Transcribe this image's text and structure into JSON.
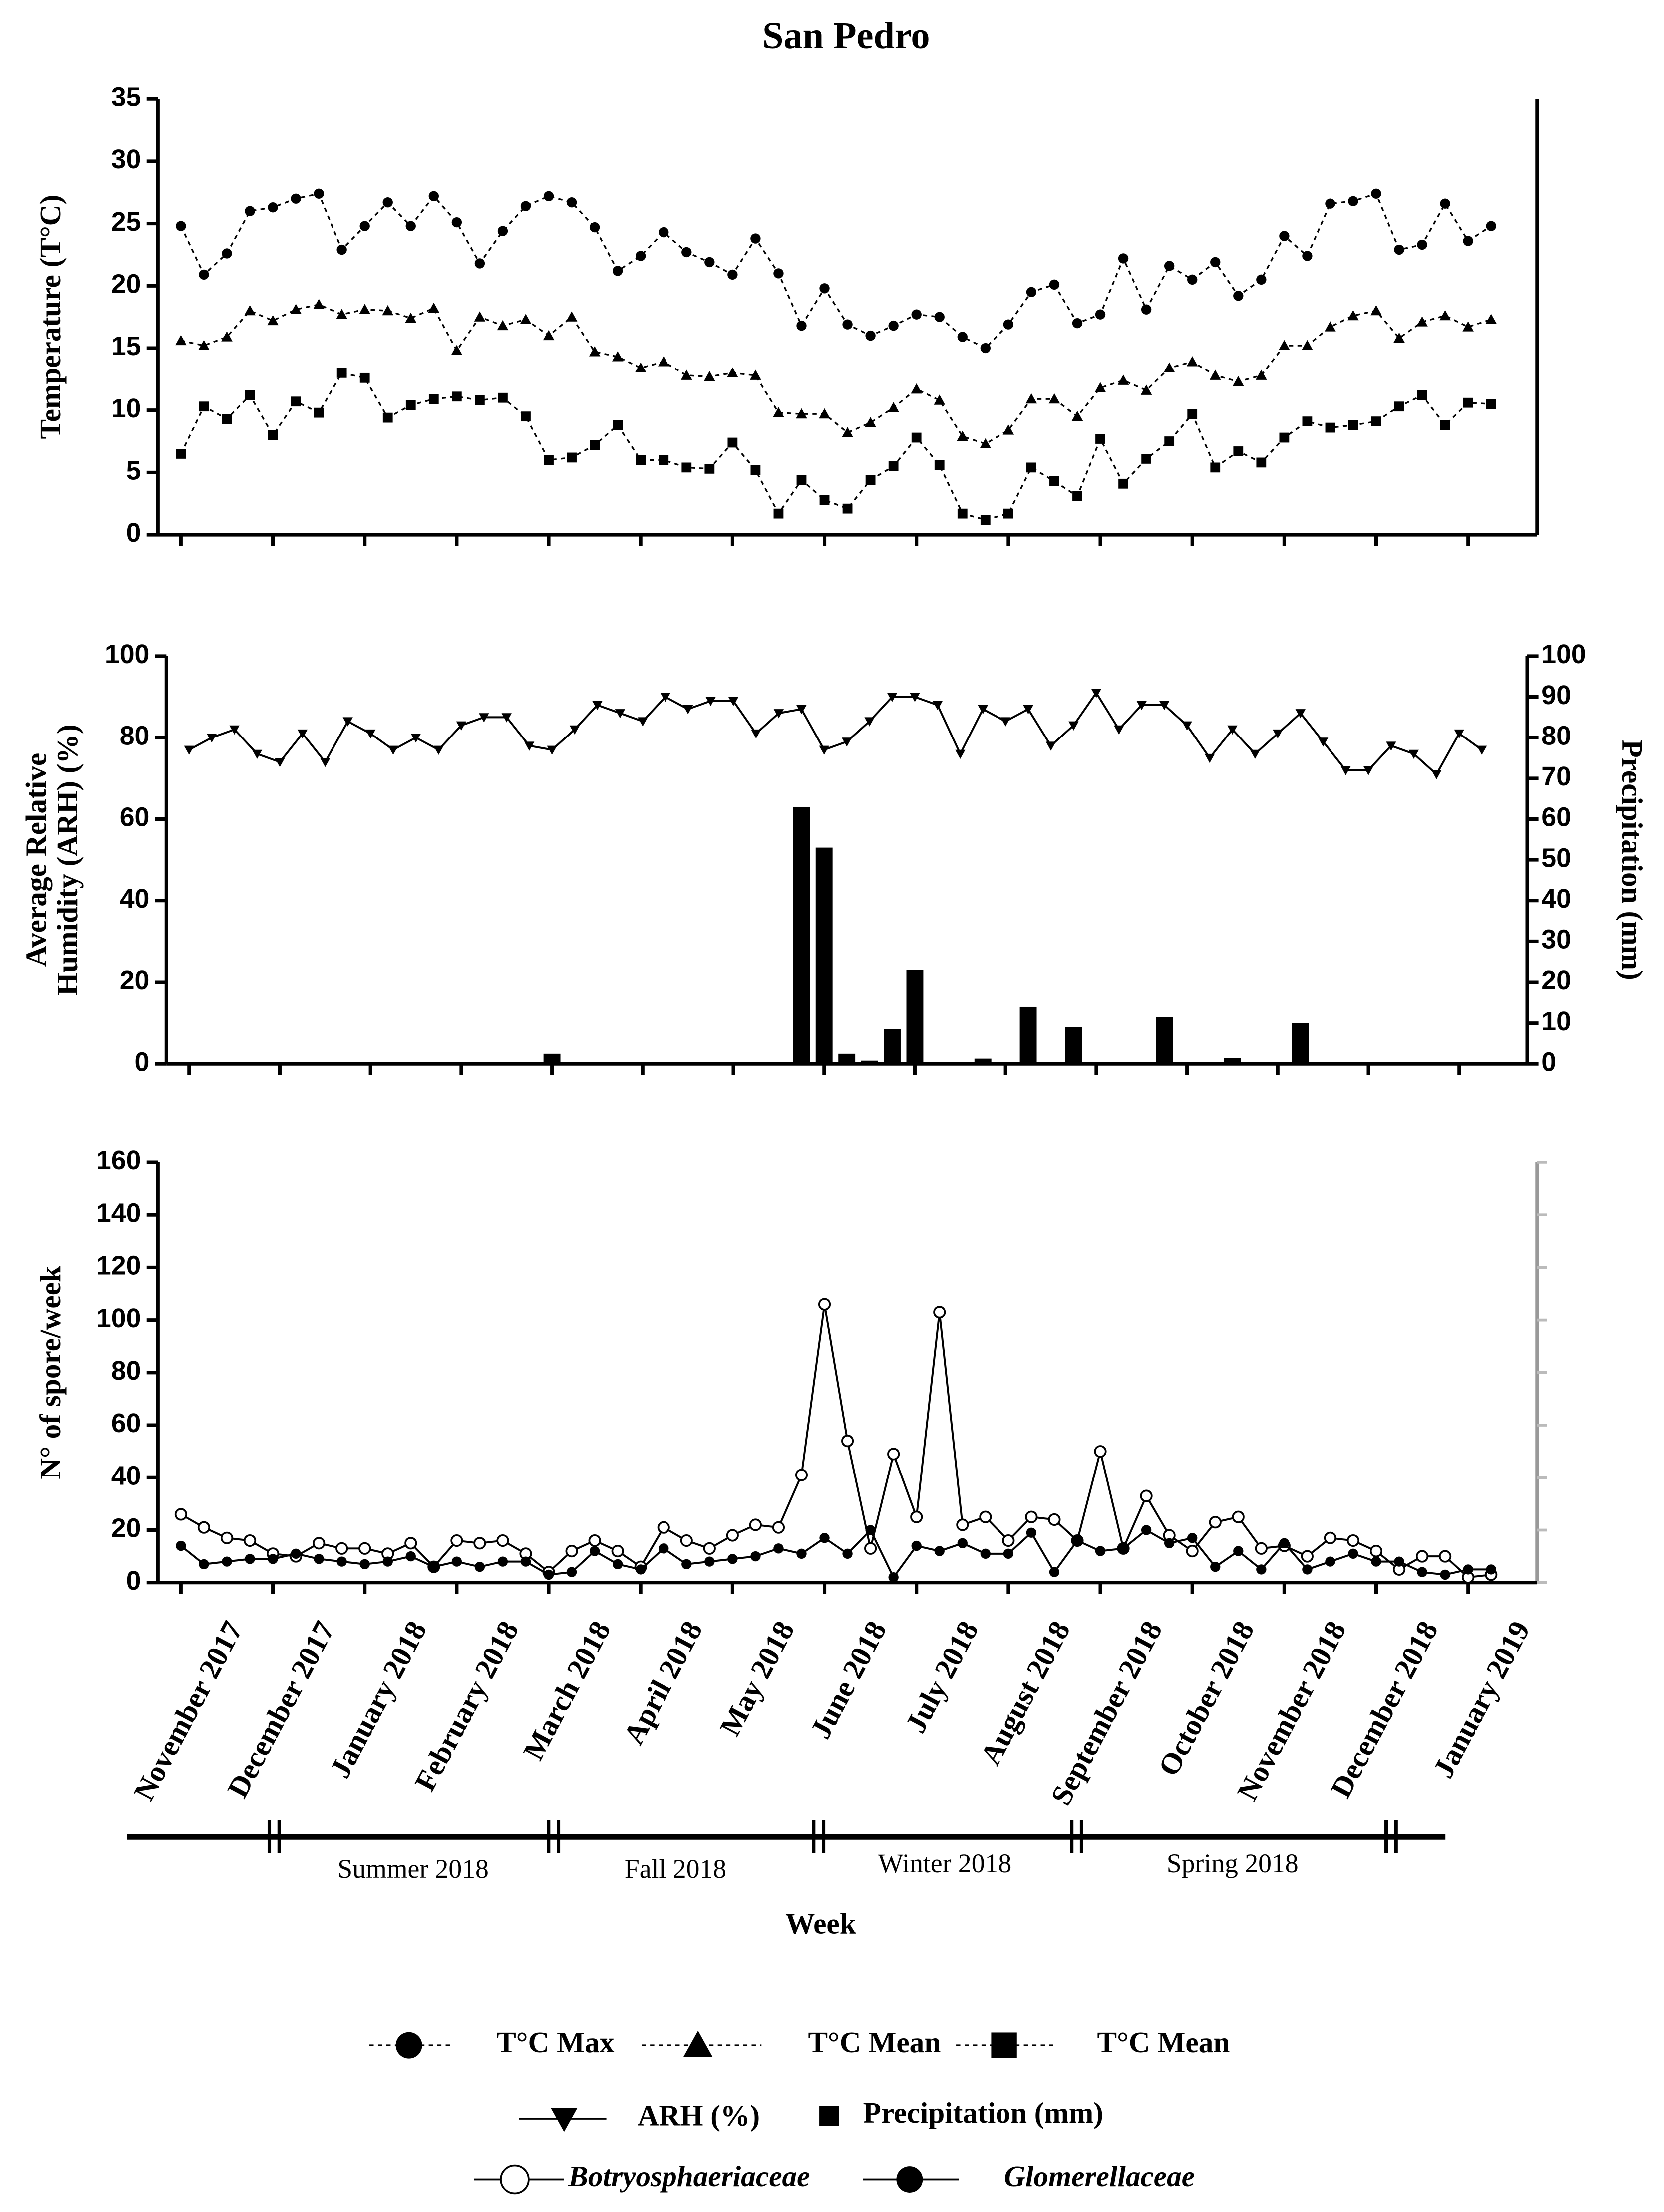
{
  "title": "San Pedro",
  "chart_data": [
    {
      "type": "line",
      "ylabel": [
        "Temperature (T°C)"
      ],
      "ylim": [
        0,
        35
      ],
      "yticks": [
        0,
        5,
        10,
        15,
        20,
        25,
        30,
        35
      ],
      "xlim": [
        -1,
        59
      ],
      "xticks": [
        0,
        4,
        8,
        12,
        16,
        20,
        24,
        28,
        32,
        36,
        40,
        44,
        48,
        52,
        56
      ],
      "series": [
        {
          "name": "T°C Max",
          "color": "#000000",
          "marker": "circle",
          "dashed": true,
          "values": [
            24.8,
            20.9,
            22.6,
            26,
            26.3,
            27,
            27.4,
            22.9,
            24.8,
            26.7,
            24.8,
            27.2,
            25.1,
            21.8,
            24.4,
            26.4,
            27.2,
            26.7,
            24.7,
            21.2,
            22.4,
            24.3,
            22.7,
            21.9,
            20.9,
            23.8,
            21,
            16.8,
            19.8,
            16.9,
            16,
            16.8,
            17.7,
            17.5,
            15.9,
            15,
            16.9,
            19.5,
            20.1,
            17,
            17.7,
            22.2,
            18.1,
            21.6,
            20.5,
            21.9,
            19.2,
            20.5,
            24,
            22.4,
            26.6,
            26.8,
            27.4,
            22.9,
            23.3,
            26.6,
            23.6,
            24.8
          ]
        },
        {
          "name": "T°C Mean",
          "color": "#000000",
          "marker": "triangle",
          "dashed": true,
          "values": [
            15.6,
            15.2,
            15.9,
            18,
            17.2,
            18.1,
            18.5,
            17.7,
            18.1,
            18,
            17.4,
            18.2,
            14.8,
            17.5,
            16.8,
            17.3,
            16,
            17.5,
            14.7,
            14.3,
            13.4,
            13.9,
            12.8,
            12.7,
            13,
            12.8,
            9.8,
            9.7,
            9.7,
            8.2,
            9,
            10.2,
            11.7,
            10.8,
            7.9,
            7.3,
            8.4,
            10.9,
            10.9,
            9.5,
            11.8,
            12.4,
            11.6,
            13.4,
            13.9,
            12.8,
            12.3,
            12.8,
            15.2,
            15.2,
            16.7,
            17.6,
            18,
            15.8,
            17.1,
            17.6,
            16.7,
            17.3
          ]
        },
        {
          "name": "T°C Mean",
          "color": "#000000",
          "marker": "square",
          "dashed": true,
          "values": [
            6.5,
            10.3,
            9.3,
            11.2,
            8,
            10.7,
            9.8,
            13,
            12.6,
            9.4,
            10.4,
            10.9,
            11.1,
            10.8,
            11,
            9.5,
            6,
            6.2,
            7.2,
            8.8,
            6,
            6,
            5.4,
            5.3,
            7.4,
            5.2,
            1.7,
            4.4,
            2.8,
            2.1,
            4.4,
            5.5,
            7.8,
            5.6,
            1.7,
            1.2,
            1.7,
            5.4,
            4.3,
            3.1,
            7.7,
            4.1,
            6.1,
            7.5,
            9.7,
            5.4,
            6.7,
            5.8,
            7.8,
            9.1,
            8.6,
            8.8,
            9.1,
            10.3,
            11.2,
            8.8,
            10.6,
            10.5
          ]
        }
      ]
    },
    {
      "type": "line",
      "ylabel": [
        "Average Relative",
        "Humidity (ARH) (%)"
      ],
      "y2label": "Precipitation (mm)",
      "ylim": [
        0,
        100
      ],
      "yticks": [
        0,
        20,
        40,
        60,
        80,
        100
      ],
      "y2lim": [
        0,
        100
      ],
      "y2ticks": [
        0,
        10,
        20,
        30,
        40,
        50,
        60,
        70,
        80,
        90,
        100
      ],
      "xlim": [
        -1,
        59
      ],
      "xticks": [
        0,
        4,
        8,
        12,
        16,
        20,
        24,
        28,
        32,
        36,
        40,
        44,
        48,
        52,
        56
      ],
      "series": [
        {
          "name": "ARH (%)",
          "color": "#000000",
          "marker": "triangle-down",
          "values": [
            77,
            80,
            82,
            76,
            74,
            81,
            74,
            84,
            81,
            77,
            80,
            77,
            83,
            85,
            85,
            78,
            77,
            82,
            88,
            86,
            84,
            90,
            87,
            89,
            89,
            81,
            86,
            87,
            77,
            79,
            84,
            90,
            90,
            88,
            76,
            87,
            84,
            87,
            78,
            83,
            91,
            82,
            88,
            88,
            83,
            75,
            82,
            76,
            81,
            86,
            79,
            72,
            72,
            78,
            76,
            71,
            81,
            77
          ]
        },
        {
          "name": "Precipitation (mm)",
          "color": "#000000",
          "type": "bar",
          "axis": "y2",
          "values": [
            0,
            0,
            0,
            0,
            0,
            0,
            0,
            0,
            0,
            0,
            0,
            0,
            0,
            0,
            0,
            0,
            2.5,
            0,
            0,
            0,
            0,
            0,
            0,
            0.5,
            0,
            0,
            0,
            63,
            53,
            2.5,
            0.8,
            8.5,
            23,
            0,
            0,
            1.3,
            0,
            14,
            0,
            9,
            0,
            0,
            0,
            11.5,
            0.5,
            0,
            1.5,
            0,
            0,
            10,
            0,
            0,
            0,
            0,
            0,
            0,
            0,
            0
          ]
        }
      ]
    },
    {
      "type": "line",
      "ylabel": [
        "N° of spore/week"
      ],
      "xlabel": "Week",
      "ylim": [
        0,
        160
      ],
      "yticks": [
        0,
        20,
        40,
        60,
        80,
        100,
        120,
        140,
        160
      ],
      "xlim": [
        -1,
        59
      ],
      "xticks": [
        {
          "value": 0,
          "label": "November 2017"
        },
        {
          "value": 4,
          "label": "December 2017"
        },
        {
          "value": 8,
          "label": "January 2018"
        },
        {
          "value": 12,
          "label": "February 2018"
        },
        {
          "value": 16,
          "label": "March 2018"
        },
        {
          "value": 20,
          "label": "April 2018"
        },
        {
          "value": 24,
          "label": "May 2018"
        },
        {
          "value": 28,
          "label": "June 2018"
        },
        {
          "value": 32,
          "label": "July 2018"
        },
        {
          "value": 36,
          "label": "August 2018"
        },
        {
          "value": 40,
          "label": "September 2018"
        },
        {
          "value": 44,
          "label": "October 2018"
        },
        {
          "value": 48,
          "label": "November 2018"
        },
        {
          "value": 52,
          "label": "December 2018"
        },
        {
          "value": 56,
          "label": "January 2019"
        }
      ],
      "series": [
        {
          "name": "Botryosphaeriaceae",
          "color": "#000000",
          "marker": "circle-open",
          "italic": true,
          "values": [
            26,
            21,
            17,
            16,
            11,
            10,
            15,
            13,
            13,
            11,
            15,
            6,
            16,
            15,
            16,
            11,
            4,
            12,
            16,
            12,
            6,
            21,
            16,
            13,
            18,
            22,
            21,
            41,
            106,
            54,
            13,
            49,
            25,
            103,
            22,
            25,
            16,
            25,
            24,
            16,
            50,
            13,
            33,
            18,
            12,
            23,
            25,
            13,
            14,
            10,
            17,
            16,
            12,
            5,
            10,
            10,
            2,
            3
          ]
        },
        {
          "name": "Glomerellaceae",
          "color": "#000000",
          "marker": "circle",
          "italic": true,
          "values": [
            14,
            7,
            8,
            9,
            9,
            11,
            9,
            8,
            7,
            8,
            10,
            6,
            8,
            6,
            8,
            8,
            3,
            4,
            12,
            7,
            5,
            13,
            7,
            8,
            9,
            10,
            13,
            11,
            17,
            11,
            20,
            2,
            14,
            12,
            15,
            11,
            11,
            19,
            4,
            16,
            12,
            13,
            20,
            15,
            17,
            6,
            12,
            5,
            15,
            5,
            8,
            11,
            8,
            8,
            4,
            3,
            5,
            5
          ]
        }
      ]
    }
  ],
  "seasons": [
    "Summer 2018",
    "Fall 2018",
    "Winter 2018",
    "Spring 2018"
  ]
}
